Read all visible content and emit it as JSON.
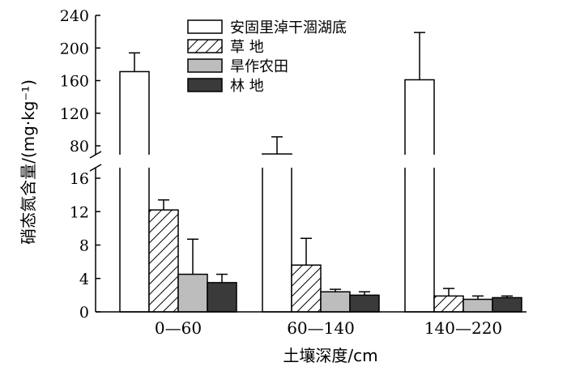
{
  "chart_data": {
    "type": "bar",
    "xlabel": "土壤深度/cm",
    "ylabel": "硝态氮含量/(mg·kg⁻¹)",
    "categories": [
      "0—60",
      "60—140",
      "140—220"
    ],
    "axis_break": {
      "lower_range": [
        0,
        16
      ],
      "upper_range": [
        80,
        240
      ]
    },
    "y_ticks_lower": [
      0,
      4,
      8,
      12,
      16
    ],
    "y_ticks_upper": [
      80,
      120,
      160,
      200,
      240
    ],
    "y_tick_labels_lower": [
      "0",
      "4",
      "8",
      "12",
      "16"
    ],
    "y_tick_labels_upper": [
      "80",
      "120",
      "160",
      "200",
      "240"
    ],
    "legend_position": "top-center",
    "series": [
      {
        "name": "安固里淖干涸湖底",
        "pattern": "white",
        "color": "#ffffff",
        "values": [
          171,
          70,
          161
        ],
        "errors": [
          23,
          21,
          58
        ]
      },
      {
        "name": "草 地",
        "pattern": "hatch",
        "color": "#ffffff",
        "values": [
          12.2,
          5.6,
          1.9
        ],
        "errors": [
          1.2,
          3.2,
          0.9
        ]
      },
      {
        "name": "旱作农田",
        "pattern": "light-gray",
        "color": "#bdbdbd",
        "values": [
          4.5,
          2.4,
          1.5
        ],
        "errors": [
          4.2,
          0.3,
          0.4
        ]
      },
      {
        "name": "林 地",
        "pattern": "dark-gray",
        "color": "#3a3a3a",
        "values": [
          3.5,
          2.0,
          1.7
        ],
        "errors": [
          1.0,
          0.4,
          0.2
        ]
      }
    ]
  }
}
